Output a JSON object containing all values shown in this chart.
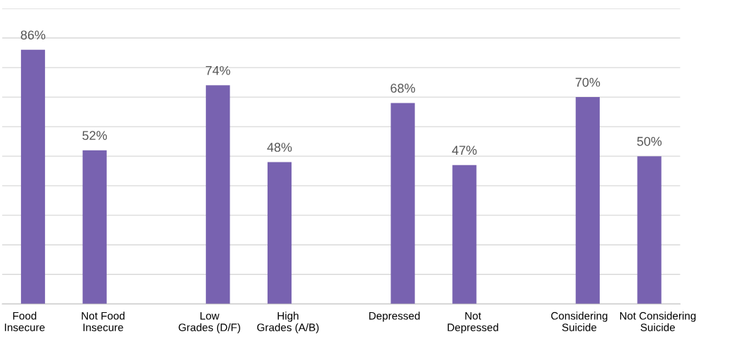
{
  "chart_data": {
    "type": "bar",
    "categories": [
      "Food\nInsecure",
      "Not Food\nInsecure",
      null,
      "Low\nGrades (D/F)",
      "High\nGrades (A/B)",
      null,
      "Depressed",
      "Not\nDepressed",
      null,
      "Considering\nSuicide",
      "Not Considering\nSuicide"
    ],
    "values": [
      86,
      52,
      null,
      74,
      48,
      null,
      68,
      47,
      null,
      70,
      50
    ],
    "value_labels": [
      "86%",
      "52%",
      null,
      "74%",
      "48%",
      null,
      "68%",
      "47%",
      null,
      "70%",
      "50%"
    ],
    "color": "#7862b0",
    "ylim": [
      0,
      100
    ],
    "yticks": [
      {
        "value": 0,
        "label": null
      },
      {
        "value": 10,
        "label": null
      },
      {
        "value": 20,
        "label": null
      },
      {
        "value": 30,
        "label": null
      },
      {
        "value": 40,
        "label": null
      },
      {
        "value": 50,
        "label": null
      },
      {
        "value": 60,
        "label": null
      },
      {
        "value": 70,
        "label": null
      },
      {
        "value": 80,
        "label": null
      },
      {
        "value": 90,
        "label": null
      },
      {
        "value": 100,
        "label": null
      }
    ],
    "grid": "y",
    "tick_labels": "x"
  }
}
